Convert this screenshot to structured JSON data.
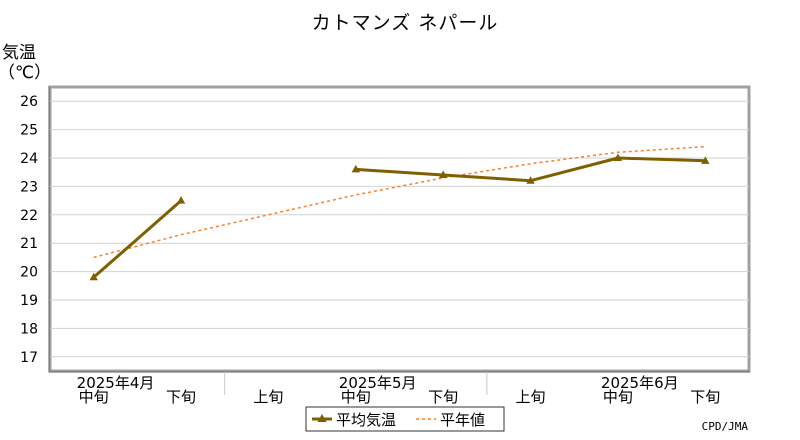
{
  "chart_data": {
    "type": "line",
    "title": "カトマンズ ネパール",
    "ylabel_top": "気温",
    "ylabel_unit": "（℃）",
    "ylim": [
      16.5,
      26.5
    ],
    "yticks": [
      "17",
      "18",
      "19",
      "20",
      "21",
      "22",
      "23",
      "24",
      "25",
      "26"
    ],
    "grid": true,
    "legend_position": "bottom-center",
    "credit": "CPD/JMA",
    "categories": [
      "中旬",
      "下旬",
      "上旬",
      "中旬",
      "下旬",
      "上旬",
      "中旬",
      "下旬"
    ],
    "month_labels": [
      {
        "label": "2025年4月",
        "category_index": 0
      },
      {
        "label": "2025年5月",
        "category_index": 3
      },
      {
        "label": "2025年6月",
        "category_index": 6
      }
    ],
    "series": [
      {
        "name": "平均気温",
        "color": "#7f6000",
        "style": "solid",
        "marker": "triangle",
        "values": [
          19.8,
          22.5,
          null,
          23.6,
          23.4,
          23.2,
          24.0,
          23.9
        ]
      },
      {
        "name": "平年値",
        "color": "#ff7f27",
        "style": "dashed",
        "marker": "none",
        "values": [
          20.5,
          21.3,
          22.0,
          22.7,
          23.3,
          23.8,
          24.2,
          24.4
        ]
      }
    ]
  }
}
